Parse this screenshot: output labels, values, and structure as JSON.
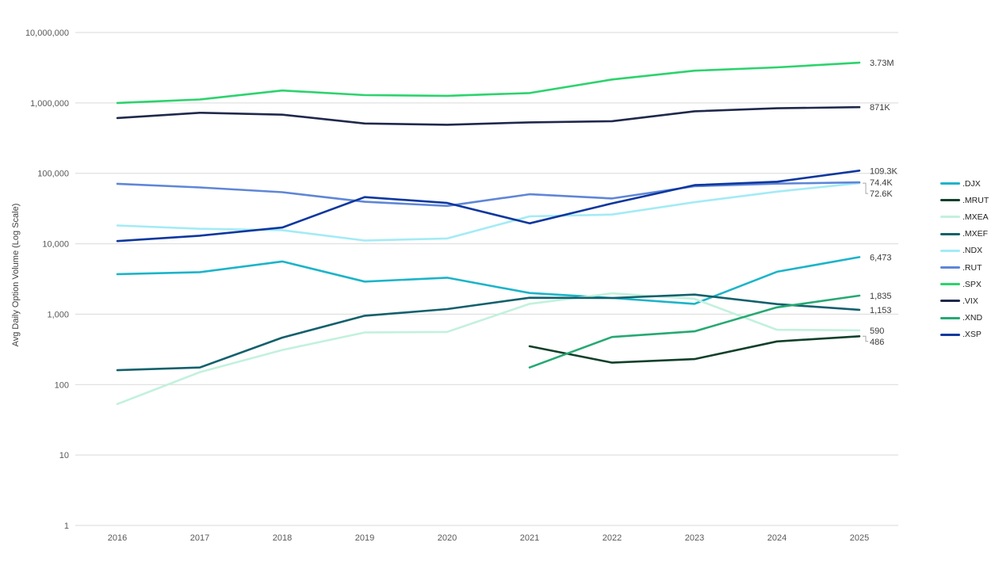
{
  "chart": {
    "y_axis_title": "Avg Daily Option Volume (Log Scale)",
    "y_tick_labels": [
      "10,000,000",
      "1,000,000",
      "100,000",
      "10,000",
      "1,000",
      "100",
      "10",
      "1"
    ],
    "x_tick_labels": [
      "2016",
      "2017",
      "2018",
      "2019",
      "2020",
      "2021",
      "2022",
      "2023",
      "2024",
      "2025"
    ],
    "grid_color": "#d9d9d9",
    "tick_color": "#595959",
    "end_label_color": "#3b3b3b",
    "background_color": "#ffffff"
  },
  "chart_data": {
    "type": "line",
    "title": "",
    "xlabel": "",
    "ylabel": "Avg Daily Option Volume (Log Scale)",
    "log_scale": true,
    "ylim": [
      1,
      10000000
    ],
    "grid": true,
    "legend_position": "right",
    "x": [
      2016,
      2017,
      2018,
      2019,
      2020,
      2021,
      2022,
      2023,
      2024,
      2025
    ],
    "series": [
      {
        "name": ".DJX",
        "color": "#1cb4c9",
        "end_label": "6,473",
        "values": [
          3700,
          3950,
          5600,
          2900,
          3300,
          2000,
          1700,
          1400,
          4000,
          6473
        ]
      },
      {
        "name": ".MRUT",
        "color": "#11402a",
        "end_label": "486",
        "values": [
          null,
          null,
          null,
          null,
          null,
          350,
          205,
          230,
          410,
          486
        ]
      },
      {
        "name": ".MXEA",
        "color": "#c2f1dd",
        "end_label": "590",
        "values": [
          53,
          150,
          310,
          550,
          560,
          1400,
          1980,
          1650,
          600,
          590
        ]
      },
      {
        "name": ".MXEF",
        "color": "#13606c",
        "end_label": "1,153",
        "values": [
          160,
          175,
          465,
          950,
          1180,
          1710,
          1700,
          1900,
          1390,
          1153
        ]
      },
      {
        "name": ".NDX",
        "color": "#a3ebf6",
        "end_label": "72.6K",
        "values": [
          18200,
          16300,
          15600,
          11100,
          11900,
          24500,
          26000,
          39000,
          55000,
          72600
        ]
      },
      {
        "name": ".RUT",
        "color": "#5f86d8",
        "end_label": "74.4K",
        "values": [
          71000,
          63000,
          54000,
          39500,
          34500,
          50500,
          44000,
          65500,
          71500,
          74400
        ]
      },
      {
        "name": ".SPX",
        "color": "#2cd36d",
        "end_label": "3.73M",
        "values": [
          1000000,
          1120000,
          1500000,
          1290000,
          1260000,
          1380000,
          2150000,
          2870000,
          3200000,
          3730000
        ]
      },
      {
        "name": ".VIX",
        "color": "#20294c",
        "end_label": "871K",
        "values": [
          610000,
          725000,
          680000,
          510000,
          490000,
          530000,
          550000,
          760000,
          840000,
          871000
        ]
      },
      {
        "name": ".XND",
        "color": "#25a973",
        "end_label": "1,835",
        "values": [
          null,
          null,
          null,
          null,
          null,
          175,
          475,
          570,
          1250,
          1835
        ]
      },
      {
        "name": ".XSP",
        "color": "#0d379f",
        "end_label": "109.3K",
        "values": [
          10900,
          13000,
          17000,
          46000,
          38000,
          19500,
          37500,
          68000,
          76000,
          109300
        ]
      }
    ]
  }
}
